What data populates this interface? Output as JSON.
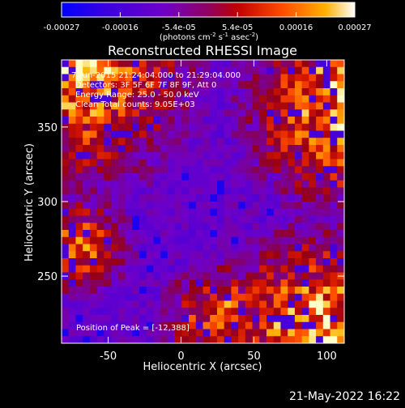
{
  "chart_data": {
    "type": "heatmap",
    "title": "Reconstructed RHESSI Image",
    "xlabel": "Heliocentric X (arcsec)",
    "ylabel": "Heliocentric Y (arcsec)",
    "xlim": [
      -82,
      112
    ],
    "ylim": [
      205,
      395
    ],
    "x_ticks": [
      -50,
      0,
      50,
      100
    ],
    "y_ticks": [
      250,
      300,
      350
    ],
    "colorbar": {
      "range": [
        -0.00027,
        0.00027
      ],
      "tick_labels": [
        "-0.00027",
        "-0.00016",
        "-5.4e-05",
        "5.4e-05",
        "0.00016",
        "0.00027"
      ],
      "units_text": "(photons cm",
      "units_sup1": "-2",
      "units_mid": " s",
      "units_sup2": "-1",
      "units_end": " asec",
      "units_sup3": "-2",
      "units_close": ")",
      "colormap": [
        "#0000ff",
        "#5a00c8",
        "#8c00ff",
        "#b00000",
        "#ff4000",
        "#ff9000",
        "#ffd000",
        "#ffffff"
      ]
    },
    "annotations": {
      "time_range": "7-Jun-2015 21:24:04.000 to 21:29:04.000",
      "detectors": "Detectors: 3F 5F 6F 7F 8F 9F, Att 0",
      "energy_range": "Energy Range: 25.0 - 50.0 keV",
      "clean": "Clean    Total counts: 9.05E+03",
      "peak": "Position of Peak = [-12,388]"
    },
    "description_bright_regions": [
      "upper-left corner",
      "upper-right edge",
      "lower-right edge"
    ],
    "peak_position": [
      -12,
      388
    ]
  },
  "footer": {
    "timestamp": "21-May-2022 16:22"
  }
}
